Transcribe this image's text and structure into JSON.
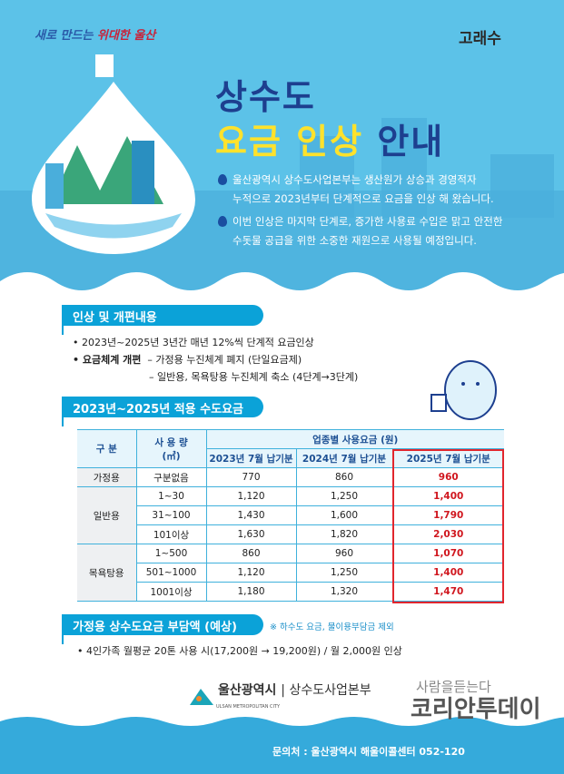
{
  "header": {
    "slogan_a": "새로 만드는",
    "slogan_b": "위대한 울산",
    "logo": "고래수",
    "title_line1": "상수도",
    "title_yellow": "요금 인상",
    "title_rest": "안내",
    "paragraphs": [
      [
        "울산광역시 상수도사업본부는 생산원가 상승과 경영적자",
        "누적으로 2023년부터 단계적으로 요금을 인상 해 왔습니다."
      ],
      [
        "이번 인상은 마지막 단계로, 증가한 사용료 수입은 맑고 안전한",
        "수돗물 공급을 위한 소중한 재원으로 사용될 예정입니다."
      ]
    ]
  },
  "section1": {
    "title": "인상 및 개편내용",
    "bullet1": "• 2023년~2025년 3년간 매년 12%씩 단계적 요금인상",
    "bullet2_label": "• 요금체계 개편",
    "bullet2_a": "– 가정용 누진체계 폐지 (단일요금제)",
    "bullet2_b": "– 일반용, 목욕탕용 누진체계 축소 (4단계→3단계)"
  },
  "section2": {
    "title": "2023년~2025년 적용 수도요금표",
    "table": {
      "h_category": "구 분",
      "h_usage": "사 용 량",
      "h_unit": "(㎥)",
      "h_group": "업종별 사용요금 (원)",
      "h_cols": [
        "2023년 7월 납기분",
        "2024년 7월 납기분",
        "2025년 7월 납기분"
      ],
      "groups": [
        {
          "name": "가정용",
          "rows": [
            {
              "usage": "구분없음",
              "v": [
                "770",
                "860",
                "960"
              ]
            }
          ]
        },
        {
          "name": "일반용",
          "rows": [
            {
              "usage": "1~30",
              "v": [
                "1,120",
                "1,250",
                "1,400"
              ]
            },
            {
              "usage": "31~100",
              "v": [
                "1,430",
                "1,600",
                "1,790"
              ]
            },
            {
              "usage": "101이상",
              "v": [
                "1,630",
                "1,820",
                "2,030"
              ]
            }
          ]
        },
        {
          "name": "목욕탕용",
          "rows": [
            {
              "usage": "1~500",
              "v": [
                "860",
                "960",
                "1,070"
              ]
            },
            {
              "usage": "501~1000",
              "v": [
                "1,120",
                "1,250",
                "1,400"
              ]
            },
            {
              "usage": "1001이상",
              "v": [
                "1,180",
                "1,320",
                "1,470"
              ]
            }
          ]
        }
      ]
    }
  },
  "section3": {
    "title": "가정용 상수도요금 부담액 (예상)",
    "note": "※ 하수도 요금, 물이용부담금 제외",
    "bullet": "• 4인가족 월평균 20톤 사용 시(17,200원 → 19,200원) / 월 2,000원 인상"
  },
  "footer": {
    "org": "울산광역시",
    "org_en": "ULSAN METROPOLITAN CITY",
    "dept": "| 상수도사업본부",
    "contact": "문의처 : 울산광역시 해울이콜센터 052-120",
    "watermark_top": "사람을듣는다",
    "watermark": "코리안투데이"
  },
  "colors": {
    "sky": "#5cc2e8",
    "navy": "#1d3f8f",
    "yellow": "#ffe22b",
    "pill": "#0ba2d8",
    "red": "#d0161e"
  }
}
